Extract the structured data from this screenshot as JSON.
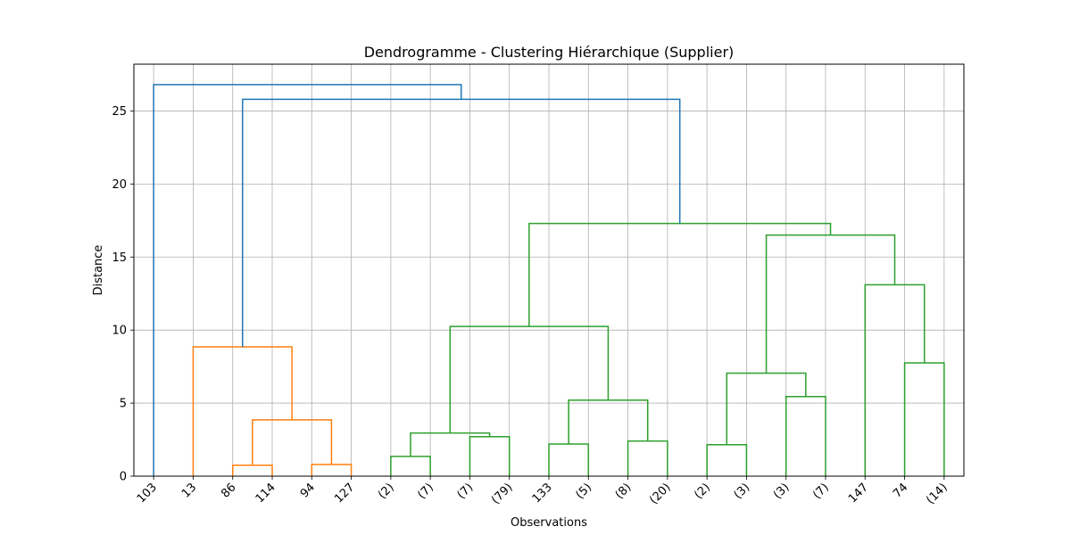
{
  "chart_data": {
    "type": "dendrogram",
    "title": "Dendrogramme - Clustering Hiérarchique (Supplier)",
    "xlabel": "Observations",
    "ylabel": "Distance",
    "ylim": [
      0,
      28.2
    ],
    "yticks": [
      0,
      5,
      10,
      15,
      20,
      25
    ],
    "grid": true,
    "leaves": [
      "103",
      "13",
      "86",
      "114",
      "94",
      "127",
      "(2)",
      "(7)",
      "(7)",
      "(79)",
      "133",
      "(5)",
      "(8)",
      "(20)",
      "(2)",
      "(3)",
      "(3)",
      "(7)",
      "147",
      "74",
      "(14)"
    ],
    "colors": {
      "blue": "#1f77b4",
      "orange": "#ff7f0e",
      "green": "#2ca02c"
    },
    "links": [
      {
        "left": 2,
        "right": 3,
        "height": 0.75,
        "color": "orange"
      },
      {
        "left": 4,
        "right": 5,
        "height": 0.8,
        "color": "orange"
      },
      {
        "left": "l0",
        "right": "l1",
        "height": 3.85,
        "color": "orange"
      },
      {
        "left": 1,
        "right": "l2",
        "height": 8.85,
        "color": "orange"
      },
      {
        "left": 6,
        "right": 7,
        "height": 1.35,
        "color": "green"
      },
      {
        "left": 8,
        "right": 9,
        "height": 2.7,
        "color": "green"
      },
      {
        "left": "l4",
        "right": "l5",
        "height": 2.95,
        "color": "green"
      },
      {
        "left": 10,
        "right": 11,
        "height": 2.2,
        "color": "green"
      },
      {
        "left": 12,
        "right": 13,
        "height": 2.4,
        "color": "green"
      },
      {
        "left": "l7",
        "right": "l8",
        "height": 5.2,
        "color": "green"
      },
      {
        "left": "l6",
        "right": "l9",
        "height": 10.25,
        "color": "green"
      },
      {
        "left": 14,
        "right": 15,
        "height": 2.15,
        "color": "green"
      },
      {
        "left": 16,
        "right": 17,
        "height": 5.45,
        "color": "green"
      },
      {
        "left": "l11",
        "right": "l12",
        "height": 7.05,
        "color": "green"
      },
      {
        "left": 19,
        "right": 20,
        "height": 7.75,
        "color": "green"
      },
      {
        "left": 18,
        "right": "l14",
        "height": 13.1,
        "color": "green"
      },
      {
        "left": "l13",
        "right": "l15",
        "height": 16.5,
        "color": "green"
      },
      {
        "left": "l10",
        "right": "l16",
        "height": 17.3,
        "color": "green"
      },
      {
        "left": "l3",
        "right": "l17",
        "height": 25.8,
        "color": "blue"
      },
      {
        "left": 0,
        "right": "l18",
        "height": 26.8,
        "color": "blue"
      }
    ]
  }
}
